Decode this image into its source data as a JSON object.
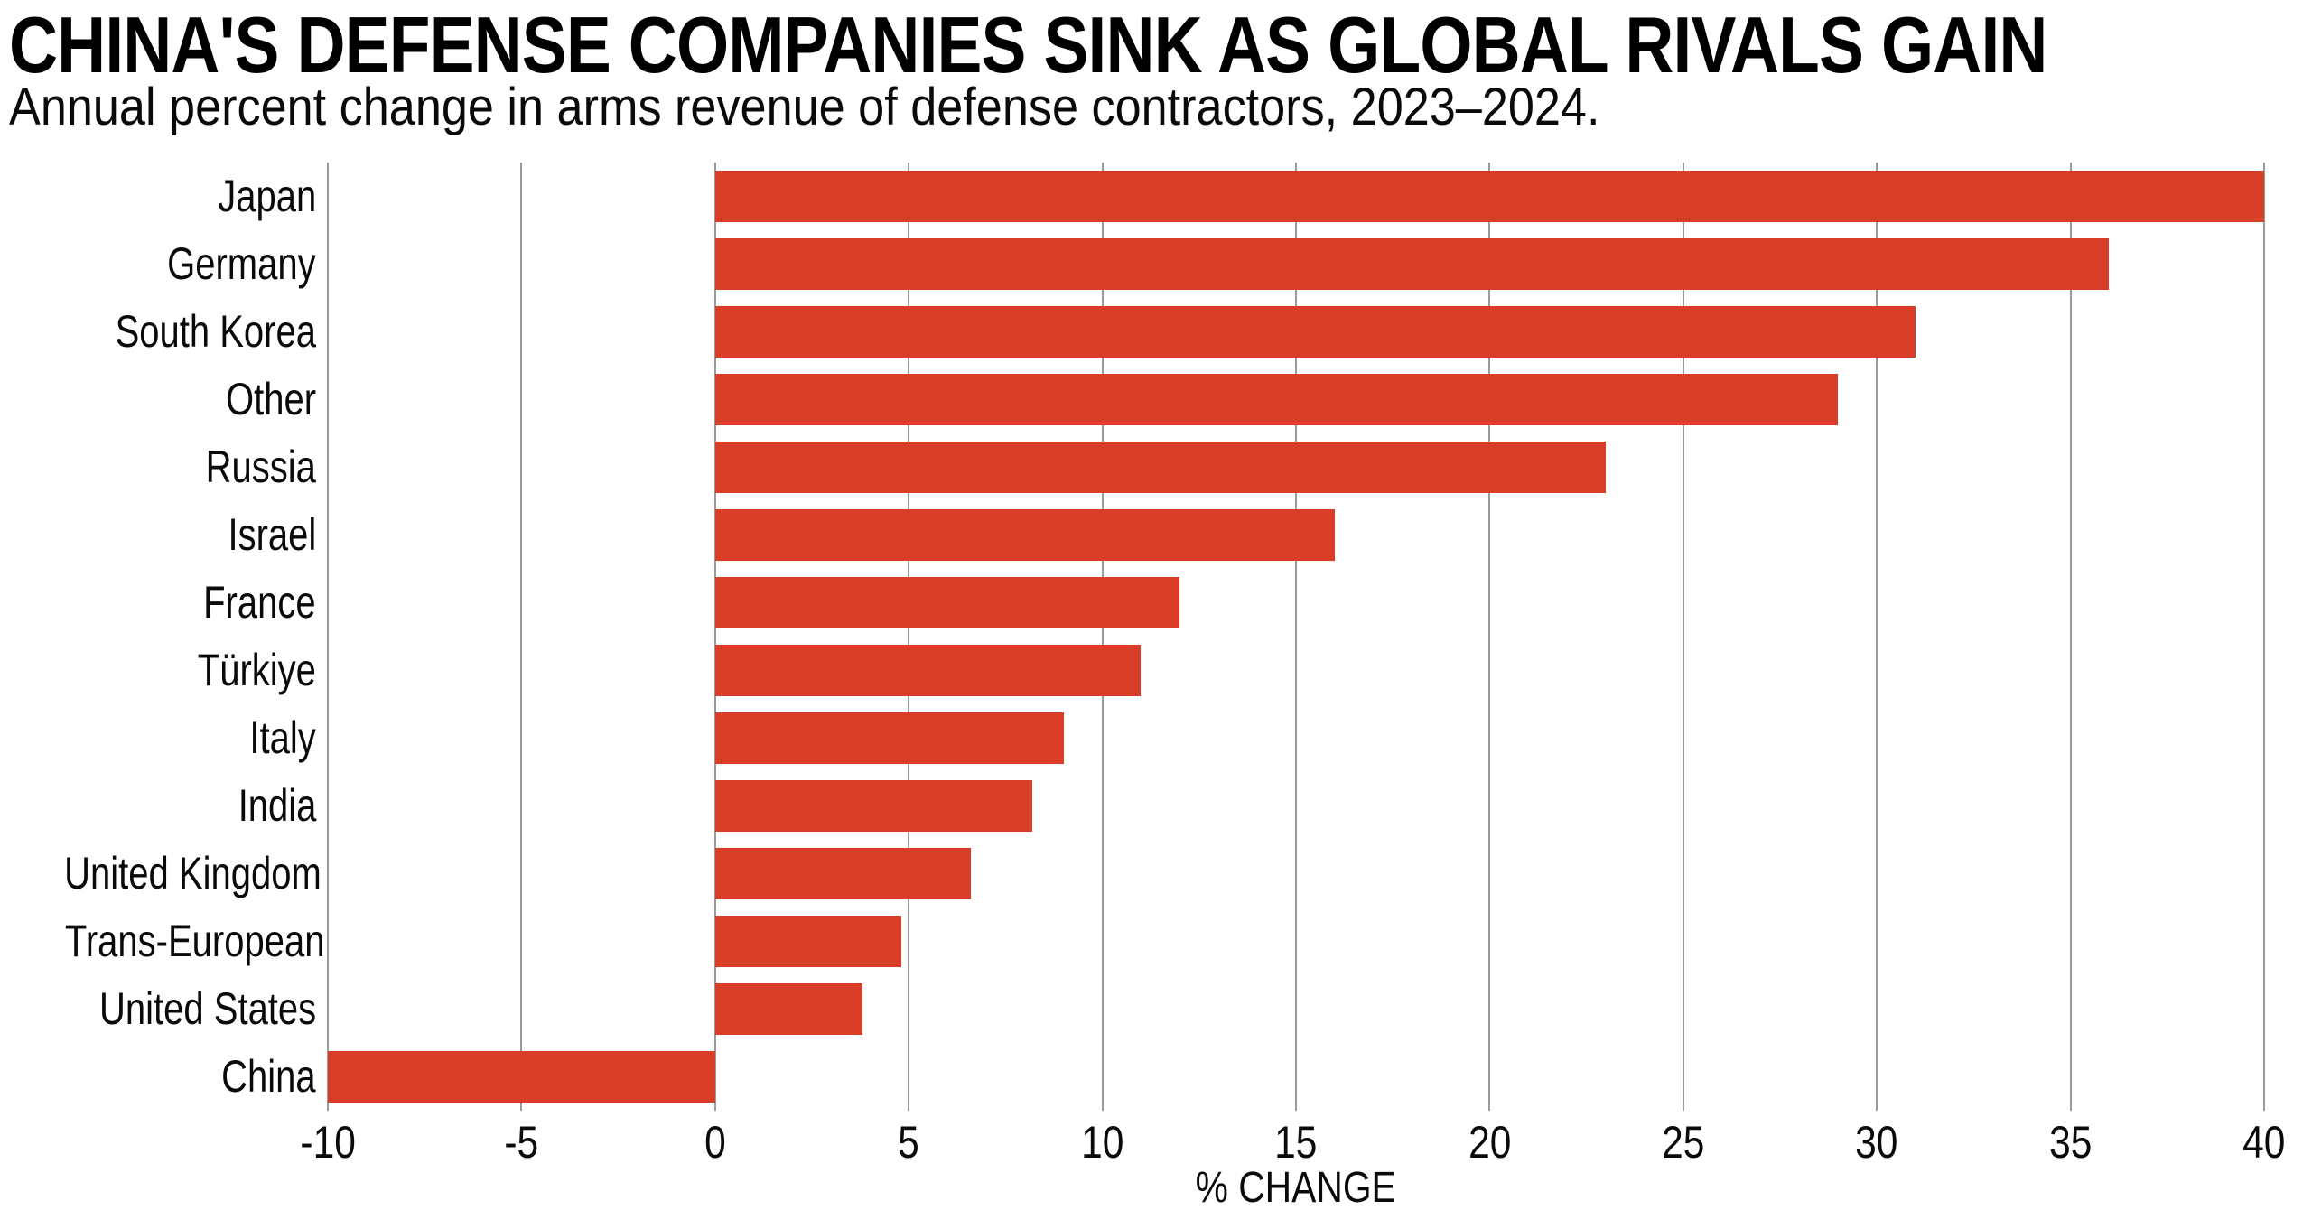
{
  "header": {
    "title": "CHINA'S DEFENSE COMPANIES SINK AS GLOBAL RIVALS GAIN",
    "subtitle": "Annual percent change in arms revenue of defense contractors, 2023–2024."
  },
  "chart_data": {
    "type": "bar",
    "orientation": "horizontal",
    "title": "CHINA'S DEFENSE COMPANIES SINK AS GLOBAL RIVALS GAIN",
    "subtitle": "Annual percent change in arms revenue of defense contractors, 2023–2024.",
    "categories": [
      "Japan",
      "Germany",
      "South Korea",
      "Other",
      "Russia",
      "Israel",
      "France",
      "Türkiye",
      "Italy",
      "India",
      "United Kingdom",
      "Trans-European",
      "United States",
      "China"
    ],
    "values": [
      40,
      36,
      31,
      29,
      23,
      16,
      12,
      11,
      9,
      8.2,
      6.6,
      4.8,
      3.8,
      -10
    ],
    "xlabel": "% CHANGE",
    "ylabel": "",
    "x_ticks": [
      -10,
      -5,
      0,
      5,
      10,
      15,
      20,
      25,
      30,
      35,
      40
    ],
    "x_tick_labels": [
      "-10",
      "-5",
      "0",
      "5",
      "10",
      "15",
      "20",
      "25",
      "30",
      "35",
      "40"
    ],
    "xlim": [
      -10,
      40
    ],
    "grid": true,
    "legend": false,
    "bar_color": "#d83e27",
    "gridline_color": "#9b9b9b",
    "text_color": "#0a0a0a"
  }
}
